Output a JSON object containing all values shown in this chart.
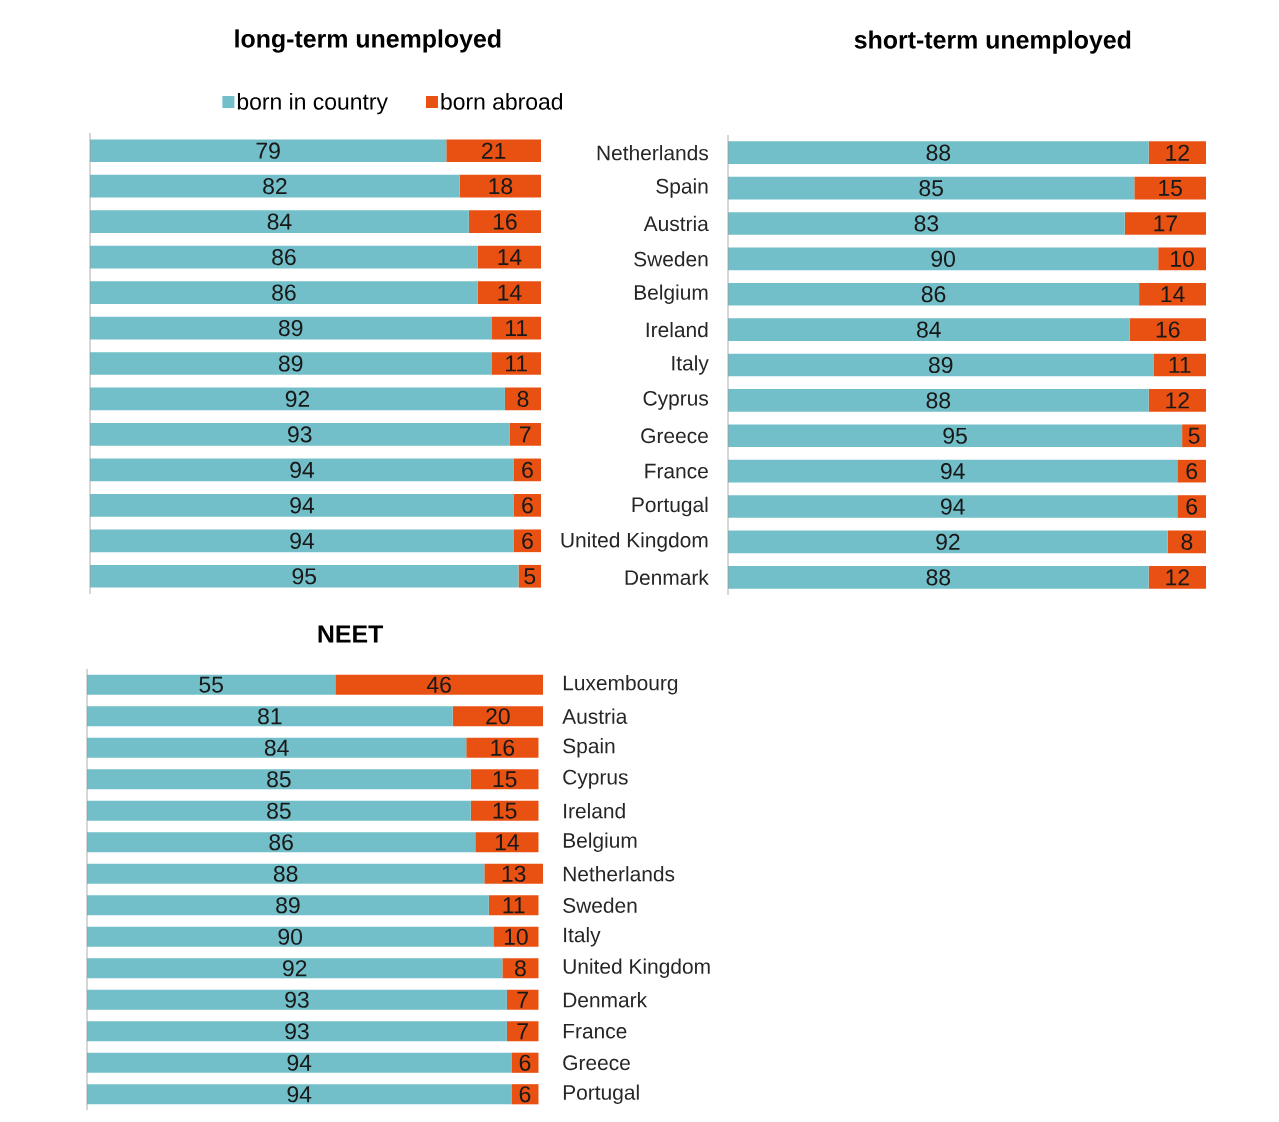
{
  "chart_data": [
    {
      "type": "bar",
      "orientation": "horizontal",
      "stacked": true,
      "title": "long-term unemployed",
      "legend": "top",
      "data_labels": true,
      "categories": [
        null,
        null,
        null,
        null,
        null,
        null,
        null,
        null,
        null,
        null,
        null,
        null,
        null
      ],
      "series": [
        {
          "name": "born in country",
          "color": "#72bfc9",
          "values": [
            79,
            82,
            84,
            86,
            86,
            89,
            89,
            92,
            93,
            94,
            94,
            94,
            95
          ]
        },
        {
          "name": "born abroad",
          "color": "#e85112",
          "values": [
            21,
            18,
            16,
            14,
            14,
            11,
            11,
            8,
            7,
            6,
            6,
            6,
            5
          ]
        }
      ]
    },
    {
      "type": "bar",
      "orientation": "horizontal",
      "stacked": true,
      "title": "short-term unemployed",
      "data_labels": true,
      "categories": [
        "Netherlands",
        "Spain",
        "Austria",
        "Sweden",
        "Belgium",
        "Ireland",
        "Italy",
        "Cyprus",
        "Greece",
        "France",
        "Portugal",
        "United Kingdom",
        "Denmark"
      ],
      "series": [
        {
          "color": "#72bfc9",
          "values": [
            88,
            85,
            83,
            90,
            86,
            84,
            89,
            88,
            95,
            94,
            94,
            92,
            88
          ]
        },
        {
          "color": "#e85112",
          "values": [
            12,
            15,
            17,
            10,
            14,
            16,
            11,
            12,
            5,
            6,
            6,
            8,
            12
          ]
        }
      ]
    },
    {
      "type": "bar",
      "orientation": "horizontal",
      "stacked": true,
      "title": "NEET",
      "data_labels": true,
      "categories": [
        "Luxembourg",
        "Austria",
        "Spain",
        "Cyprus",
        "Ireland",
        "Belgium",
        "Netherlands",
        "Sweden",
        "Italy",
        "United Kingdom",
        "Denmark",
        "France",
        "Greece",
        "Portugal"
      ],
      "series": [
        {
          "color": "#72bfc9",
          "values": [
            55,
            81,
            84,
            85,
            85,
            86,
            88,
            89,
            90,
            92,
            93,
            93,
            94,
            94
          ]
        },
        {
          "color": "#e85112",
          "values": [
            46,
            20,
            16,
            15,
            15,
            14,
            13,
            11,
            10,
            8,
            7,
            7,
            6,
            6
          ]
        }
      ]
    }
  ]
}
